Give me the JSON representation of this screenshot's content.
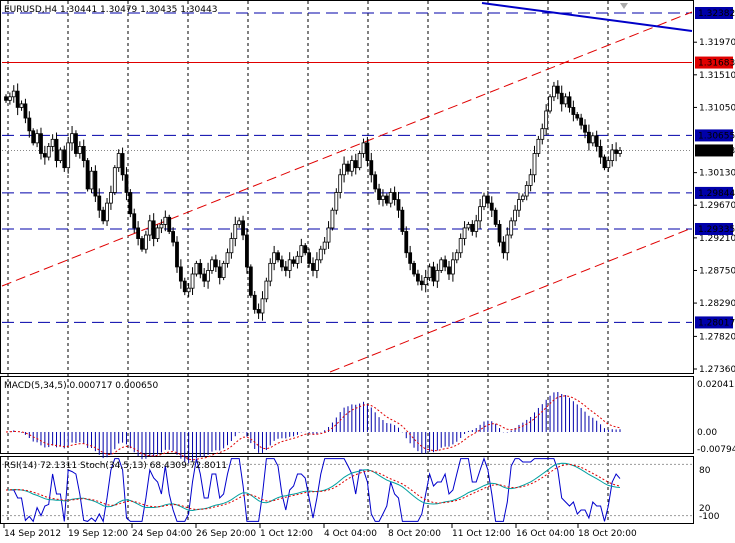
{
  "main_header": "EURUSD,H4  1.30441 1.30479 1.30435 1.30443",
  "macd_header": "MACD(5,34,5) 0.000717 0.000650",
  "osc_header": "RSI(14) 72.1311  Stoch(34,5,13) 68.4309 72.8011",
  "colors": {
    "candle": "#000000",
    "dashed_blue": "#0000aa",
    "trend_blue": "#0000c8",
    "red": "#e00000",
    "macd_hist": "#0000aa",
    "signal": "#e00000",
    "rsi": "#0000cc",
    "stoch_main": "#00a0a0"
  },
  "levels": [
    {
      "label": "1.32382",
      "value": 1.32382,
      "color": "#0000aa",
      "style": "dashed",
      "highlight": true
    },
    {
      "label": "1.31683",
      "value": 1.31683,
      "color": "#e00000",
      "style": "solid",
      "highlight": true
    },
    {
      "label": "1.30655",
      "value": 1.30655,
      "color": "#0000aa",
      "style": "dashed",
      "highlight": true
    },
    {
      "label": "1.29844",
      "value": 1.29844,
      "color": "#0000aa",
      "style": "dashed",
      "highlight": true
    },
    {
      "label": "1.29335",
      "value": 1.29335,
      "color": "#0000aa",
      "style": "dashed",
      "highlight": true
    },
    {
      "label": "1.28017",
      "value": 1.28017,
      "color": "#0000aa",
      "style": "dashed",
      "highlight": true
    }
  ],
  "current_price": {
    "label": "1.30443",
    "value": 1.30443
  },
  "price_ticks": [
    {
      "label": "1.31970",
      "value": 1.3197
    },
    {
      "label": "1.31510",
      "value": 1.3151
    },
    {
      "label": "1.31050",
      "value": 1.3105
    },
    {
      "label": "1.30130",
      "value": 1.3013
    },
    {
      "label": "1.29670",
      "value": 1.2967
    },
    {
      "label": "1.29210",
      "value": 1.2921
    },
    {
      "label": "1.28750",
      "value": 1.2875
    },
    {
      "label": "1.28290",
      "value": 1.2829
    },
    {
      "label": "1.27820",
      "value": 1.2782
    },
    {
      "label": "1.27360",
      "value": 1.2736
    }
  ],
  "macd_ticks": [
    {
      "label": "0.020413",
      "value": 0.020413
    },
    {
      "label": "0.00",
      "value": 0.0
    },
    {
      "label": "-0.00794",
      "value": -0.00794
    }
  ],
  "osc_ticks": [
    {
      "label": "80",
      "value": 80
    },
    {
      "label": "20",
      "value": 20
    },
    {
      "label": "-100",
      "value": -100
    }
  ],
  "time_labels": [
    "14 Sep 2012",
    "19 Sep 12:00",
    "24 Sep 04:00",
    "26 Sep 20:00",
    "1 Oct 12:00",
    "4 Oct 04:00",
    "8 Oct 20:00",
    "11 Oct 12:00",
    "16 Oct 04:00",
    "18 Oct 20:00"
  ],
  "chart_data": {
    "type": "candlestick",
    "symbol": "EURUSD",
    "timeframe": "H4",
    "ohlc_last": {
      "open": 1.30441,
      "high": 1.30479,
      "low": 1.30435,
      "close": 1.30443
    },
    "close": [
      1.3115,
      1.312,
      1.3128,
      1.3105,
      1.311,
      1.309,
      1.3072,
      1.3055,
      1.3068,
      1.304,
      1.3035,
      1.305,
      1.306,
      1.303,
      1.3045,
      1.302,
      1.3055,
      1.3068,
      1.304,
      1.305,
      1.303,
      1.299,
      1.3015,
      1.298,
      1.296,
      1.2945,
      1.297,
      1.2985,
      1.302,
      1.304,
      1.301,
      1.2985,
      1.2955,
      1.2935,
      1.292,
      1.2905,
      1.2925,
      1.2945,
      1.292,
      1.2935,
      1.294,
      1.295,
      1.293,
      1.2915,
      1.288,
      1.286,
      1.2845,
      1.285,
      1.287,
      1.2885,
      1.287,
      1.286,
      1.2875,
      1.289,
      1.288,
      1.2865,
      1.2885,
      1.29,
      1.292,
      1.294,
      1.2945,
      1.2925,
      1.288,
      1.284,
      1.282,
      1.2815,
      1.2835,
      1.286,
      1.2885,
      1.29,
      1.289,
      1.288,
      1.2875,
      1.289,
      1.2885,
      1.2895,
      1.291,
      1.29,
      1.2885,
      1.2875,
      1.289,
      1.2905,
      1.2915,
      1.2935,
      1.296,
      1.2985,
      1.301,
      1.3025,
      1.3015,
      1.303,
      1.302,
      1.304,
      1.3055,
      1.303,
      1.301,
      1.299,
      1.2975,
      1.298,
      1.297,
      1.2985,
      1.2975,
      1.296,
      1.293,
      1.29,
      1.2885,
      1.287,
      1.286,
      1.2855,
      1.2865,
      1.288,
      1.286,
      1.2875,
      1.289,
      1.288,
      1.287,
      1.289,
      1.29,
      1.292,
      1.2935,
      1.294,
      1.293,
      1.2945,
      1.2965,
      1.298,
      1.297,
      1.296,
      1.294,
      1.2915,
      1.29,
      1.2925,
      1.2945,
      1.296,
      1.2975,
      1.298,
      1.2995,
      1.301,
      1.304,
      1.306,
      1.3075,
      1.31,
      1.312,
      1.3135,
      1.3125,
      1.311,
      1.312,
      1.3105,
      1.3095,
      1.309,
      1.308,
      1.307,
      1.3055,
      1.3065,
      1.305,
      1.3035,
      1.302,
      1.303,
      1.3045,
      1.304,
      1.30443
    ]
  }
}
